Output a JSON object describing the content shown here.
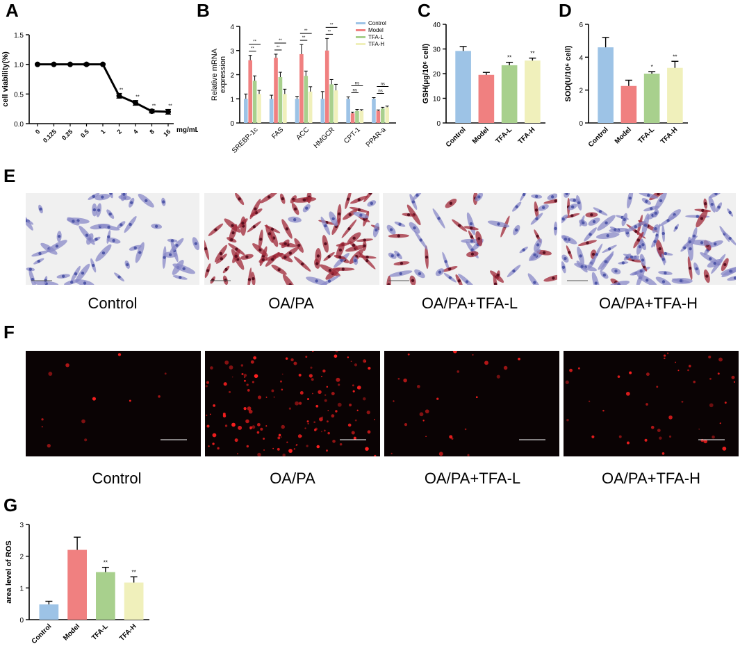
{
  "panels": {
    "A": "A",
    "B": "B",
    "C": "C",
    "D": "D",
    "E": "E",
    "F": "F",
    "G": "G"
  },
  "colors": {
    "control": "#9dc3e6",
    "model": "#f08080",
    "tfa_l": "#a8d08d",
    "tfa_h": "#f0f0bb",
    "line": "#000000",
    "stain": "#f0f0f0",
    "fluor_bg": "#0a0304",
    "ros": "#ff2020"
  },
  "chart_data": [
    {
      "id": "A",
      "type": "line",
      "ylabel": "cell viability(%)",
      "unit_label": "mg/mL",
      "categories": [
        "0",
        "0.125",
        "0.25",
        "0.5",
        "1",
        "2",
        "4",
        "8",
        "16"
      ],
      "values": [
        1.0,
        1.0,
        1.0,
        1.0,
        1.0,
        0.47,
        0.35,
        0.21,
        0.2
      ],
      "errors": [
        0.01,
        0.01,
        0.01,
        0.02,
        0.01,
        0.04,
        0.04,
        0.03,
        0.04
      ],
      "sig": [
        "",
        "",
        "",
        "",
        "",
        "**",
        "**",
        "**",
        "**"
      ],
      "ylim": [
        0,
        1.5
      ],
      "yticks": [
        "0.0",
        "0.5",
        "1.0",
        "1.5"
      ]
    },
    {
      "id": "B",
      "type": "bar",
      "ylabel": "Relative mRNA expression",
      "categories": [
        "SREBP-1c",
        "FAS",
        "ACC",
        "HMGCR",
        "CPT-1",
        "PPAR-a"
      ],
      "series": [
        {
          "name": "Control",
          "values": [
            1.0,
            1.0,
            1.0,
            1.0,
            1.0,
            1.0
          ],
          "errors": [
            0.2,
            0.15,
            0.1,
            0.3,
            0.08,
            0.05
          ]
        },
        {
          "name": "Model",
          "values": [
            2.6,
            2.7,
            2.85,
            3.0,
            0.4,
            0.5
          ],
          "errors": [
            0.2,
            0.15,
            0.4,
            0.5,
            0.05,
            0.04
          ]
        },
        {
          "name": "TFA-L",
          "values": [
            1.75,
            1.9,
            1.95,
            1.6,
            0.5,
            0.6
          ],
          "errors": [
            0.2,
            0.2,
            0.2,
            0.2,
            0.06,
            0.05
          ]
        },
        {
          "name": "TFA-H",
          "values": [
            1.2,
            1.2,
            1.3,
            1.35,
            0.5,
            0.65
          ],
          "errors": [
            0.15,
            0.2,
            0.2,
            0.25,
            0.05,
            0.05
          ]
        }
      ],
      "sig": [
        {
          "cat": 0,
          "from": 1,
          "to": 3,
          "label": "**"
        },
        {
          "cat": 0,
          "from": 1,
          "to": 2,
          "label": "**"
        },
        {
          "cat": 1,
          "from": 1,
          "to": 3,
          "label": "**"
        },
        {
          "cat": 1,
          "from": 1,
          "to": 2,
          "label": "**"
        },
        {
          "cat": 2,
          "from": 1,
          "to": 3,
          "label": "**"
        },
        {
          "cat": 2,
          "from": 1,
          "to": 2,
          "label": "**"
        },
        {
          "cat": 3,
          "from": 1,
          "to": 3,
          "label": "**"
        },
        {
          "cat": 3,
          "from": 1,
          "to": 2,
          "label": "**"
        },
        {
          "cat": 4,
          "from": 1,
          "to": 3,
          "label": "ns"
        },
        {
          "cat": 4,
          "from": 1,
          "to": 2,
          "label": "ns"
        },
        {
          "cat": 5,
          "from": 1,
          "to": 3,
          "label": "ns"
        },
        {
          "cat": 5,
          "from": 1,
          "to": 2,
          "label": "ns"
        }
      ],
      "ylim": [
        0,
        4
      ],
      "yticks": [
        "0",
        "1",
        "2",
        "3",
        "4"
      ],
      "legend": "top-right"
    },
    {
      "id": "C",
      "type": "bar",
      "ylabel": "GSH(μg/10⁶ cell)",
      "categories": [
        "Control",
        "Model",
        "TFA-L",
        "TFA-H"
      ],
      "values": [
        29.2,
        19.5,
        23.4,
        25.3
      ],
      "errors": [
        1.8,
        1.0,
        1.2,
        1.0
      ],
      "sig": [
        "",
        "",
        "**",
        "**"
      ],
      "ylim": [
        0,
        40
      ],
      "yticks": [
        "0",
        "10",
        "20",
        "30",
        "40"
      ]
    },
    {
      "id": "D",
      "type": "bar",
      "ylabel": "SOD(U/10⁶ cell)",
      "categories": [
        "Control",
        "Model",
        "TFA-L",
        "TFA-H"
      ],
      "values": [
        4.6,
        2.25,
        3.0,
        3.35
      ],
      "errors": [
        0.6,
        0.35,
        0.12,
        0.4
      ],
      "sig": [
        "",
        "",
        "*",
        "**"
      ],
      "ylim": [
        0,
        6
      ],
      "yticks": [
        "0",
        "2",
        "4",
        "6"
      ]
    },
    {
      "id": "G",
      "type": "bar",
      "ylabel": "area level of ROS",
      "categories": [
        "Control",
        "Model",
        "TFA-L",
        "TFA-H"
      ],
      "values": [
        0.48,
        2.2,
        1.5,
        1.17
      ],
      "errors": [
        0.1,
        0.4,
        0.15,
        0.18
      ],
      "sig": [
        "",
        "",
        "**",
        "**"
      ],
      "ylim": [
        0,
        3
      ],
      "yticks": [
        "0",
        "1",
        "2",
        "3"
      ]
    }
  ],
  "stain_captions": [
    "Control",
    "OA/PA",
    "OA/PA+TFA-L",
    "OA/PA+TFA-H"
  ],
  "fluor_captions": [
    "Control",
    "OA/PA",
    "OA/PA+TFA-L",
    "OA/PA+TFA-H"
  ],
  "stain_images": [
    {
      "cells": 55,
      "red": 0.0
    },
    {
      "cells": 90,
      "red": 0.85
    },
    {
      "cells": 60,
      "red": 0.45
    },
    {
      "cells": 110,
      "red": 0.25
    }
  ],
  "fluor_images": [
    {
      "spots": 12
    },
    {
      "spots": 140
    },
    {
      "spots": 25
    },
    {
      "spots": 45
    }
  ]
}
